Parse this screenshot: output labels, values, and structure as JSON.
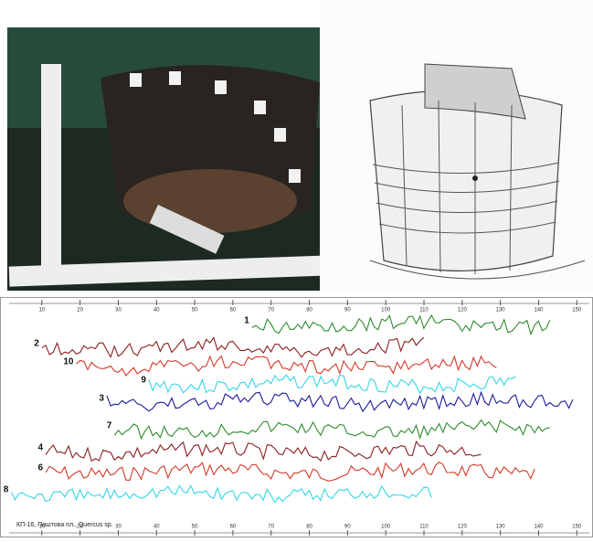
{
  "chart_data": {
    "type": "line",
    "caption": "КП-16, Поштова пл., Quercus sp.",
    "xlim": [
      0,
      154
    ],
    "xticks": [
      10,
      20,
      30,
      40,
      50,
      60,
      70,
      80,
      90,
      100,
      110,
      120,
      130,
      140,
      150
    ],
    "series": [
      {
        "name": "1",
        "color": "#2e8b2e",
        "xlim": [
          65,
          143
        ]
      },
      {
        "name": "2",
        "color": "#8b1e1e",
        "xlim": [
          10,
          110
        ]
      },
      {
        "name": "10",
        "color": "#d23a2a",
        "xlim": [
          19,
          129
        ]
      },
      {
        "name": "9",
        "color": "#33d6e6",
        "xlim": [
          38,
          134
        ]
      },
      {
        "name": "3",
        "color": "#1c1c9c",
        "xlim": [
          27,
          149
        ]
      },
      {
        "name": "7",
        "color": "#2e8b2e",
        "xlim": [
          29,
          143
        ]
      },
      {
        "name": "4",
        "color": "#8b1e1e",
        "xlim": [
          11,
          125
        ]
      },
      {
        "name": "6",
        "color": "#d23a2a",
        "xlim": [
          11,
          139
        ]
      },
      {
        "name": "8",
        "color": "#33d6e6",
        "xlim": [
          2,
          112
        ]
      }
    ]
  }
}
